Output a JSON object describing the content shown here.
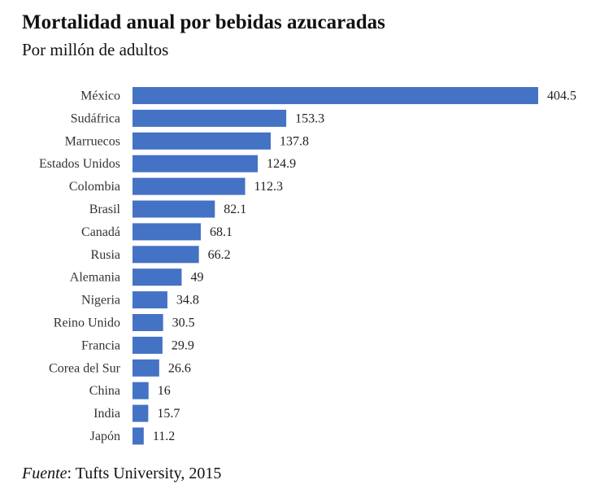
{
  "title": "Mortalidad anual por bebidas azucaradas",
  "subtitle": "Por millón de adultos",
  "source": {
    "label": "Fuente",
    "text": ": Tufts University, 2015"
  },
  "colors": {
    "bar": "#4472C4"
  },
  "chart_data": {
    "type": "bar",
    "orientation": "horizontal",
    "categories": [
      "México",
      "Sudáfrica",
      "Marruecos",
      "Estados Unidos",
      "Colombia",
      "Brasil",
      "Canadá",
      "Rusia",
      "Alemania",
      "Nigeria",
      "Reino Unido",
      "Francia",
      "Corea del Sur",
      "China",
      "India",
      "Japón"
    ],
    "values": [
      404.5,
      153.3,
      137.8,
      124.9,
      112.3,
      82.1,
      68.1,
      66.2,
      49,
      34.8,
      30.5,
      29.9,
      26.6,
      16,
      15.7,
      11.2
    ],
    "data_labels": [
      "404.5",
      "153.3",
      "137.8",
      "124.9",
      "112.3",
      "82.1",
      "68.1",
      "66.2",
      "49",
      "34.8",
      "30.5",
      "29.9",
      "26.6",
      "16",
      "15.7",
      "11.2"
    ],
    "xlim": [
      0,
      404.5
    ],
    "grid": false,
    "legend": "none"
  }
}
